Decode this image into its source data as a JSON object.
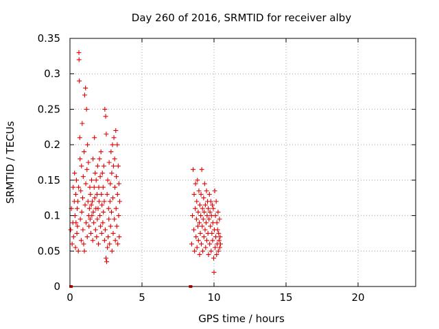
{
  "chart_data": {
    "type": "scatter",
    "title": "Day 260 of 2016, SRMTID for receiver alby",
    "xlabel": "GPS time / hours",
    "ylabel": "SRMTID / TECUs",
    "xlim": [
      0,
      24
    ],
    "ylim": [
      0,
      0.35
    ],
    "xticks": [
      0,
      5,
      10,
      15,
      20
    ],
    "xtick_labels": [
      "0",
      "5",
      "10",
      "15",
      "20"
    ],
    "yticks": [
      0,
      0.05,
      0.1,
      0.15,
      0.2,
      0.25,
      0.3,
      0.35
    ],
    "ytick_labels": [
      "0",
      "0.05",
      "0.1",
      "0.15",
      "0.2",
      "0.25",
      "0.3",
      "0.35"
    ],
    "grid": true,
    "marker": "+",
    "color": "#e00000",
    "series": [
      {
        "name": "SRMTID",
        "points": [
          [
            0.05,
            0.08
          ],
          [
            0.1,
            0.11
          ],
          [
            0.15,
            0.06
          ],
          [
            0.2,
            0.09
          ],
          [
            0.22,
            0.14
          ],
          [
            0.25,
            0.07
          ],
          [
            0.3,
            0.12
          ],
          [
            0.32,
            0.16
          ],
          [
            0.35,
            0.1
          ],
          [
            0.38,
            0.055
          ],
          [
            0.4,
            0.13
          ],
          [
            0.42,
            0.09
          ],
          [
            0.45,
            0.15
          ],
          [
            0.48,
            0.075
          ],
          [
            0.5,
            0.11
          ],
          [
            0.52,
            0.085
          ],
          [
            0.55,
            0.12
          ],
          [
            0.58,
            0.05
          ],
          [
            0.6,
            0.14
          ],
          [
            0.62,
            0.33
          ],
          [
            0.63,
            0.32
          ],
          [
            0.65,
            0.29
          ],
          [
            0.68,
            0.21
          ],
          [
            0.7,
            0.18
          ],
          [
            0.72,
            0.095
          ],
          [
            0.75,
            0.135
          ],
          [
            0.78,
            0.065
          ],
          [
            0.8,
            0.17
          ],
          [
            0.82,
            0.105
          ],
          [
            0.85,
            0.23
          ],
          [
            0.88,
            0.125
          ],
          [
            0.9,
            0.08
          ],
          [
            0.92,
            0.155
          ],
          [
            0.95,
            0.06
          ],
          [
            0.98,
            0.19
          ],
          [
            1.0,
            0.05
          ],
          [
            1.02,
            0.27
          ],
          [
            1.05,
            0.115
          ],
          [
            1.08,
            0.28
          ],
          [
            1.1,
            0.145
          ],
          [
            1.12,
            0.09
          ],
          [
            1.15,
            0.25
          ],
          [
            1.18,
            0.165
          ],
          [
            1.2,
            0.07
          ],
          [
            1.22,
            0.2
          ],
          [
            1.25,
            0.12
          ],
          [
            1.28,
            0.175
          ],
          [
            1.3,
            0.1
          ],
          [
            1.32,
            0.085
          ],
          [
            1.35,
            0.11
          ],
          [
            1.38,
            0.14
          ],
          [
            1.4,
            0.095
          ],
          [
            1.42,
            0.13
          ],
          [
            1.45,
            0.075
          ],
          [
            1.48,
            0.115
          ],
          [
            1.5,
            0.15
          ],
          [
            1.52,
            0.1
          ],
          [
            1.55,
            0.12
          ],
          [
            1.58,
            0.065
          ],
          [
            1.6,
            0.18
          ],
          [
            1.62,
            0.105
          ],
          [
            1.65,
            0.09
          ],
          [
            1.68,
            0.14
          ],
          [
            1.7,
            0.21
          ],
          [
            1.72,
            0.125
          ],
          [
            1.75,
            0.16
          ],
          [
            1.78,
            0.08
          ],
          [
            1.8,
            0.11
          ],
          [
            1.82,
            0.15
          ],
          [
            1.85,
            0.07
          ],
          [
            1.88,
            0.13
          ],
          [
            1.9,
            0.095
          ],
          [
            1.92,
            0.17
          ],
          [
            1.95,
            0.11
          ],
          [
            1.98,
            0.06
          ],
          [
            2.0,
            0.14
          ],
          [
            2.02,
            0.12
          ],
          [
            2.05,
            0.18
          ],
          [
            2.08,
            0.1
          ],
          [
            2.1,
            0.155
          ],
          [
            2.12,
            0.085
          ],
          [
            2.15,
            0.19
          ],
          [
            2.18,
            0.13
          ],
          [
            2.2,
            0.075
          ],
          [
            2.22,
            0.115
          ],
          [
            2.25,
            0.16
          ],
          [
            2.28,
            0.09
          ],
          [
            2.3,
            0.14
          ],
          [
            2.32,
            0.105
          ],
          [
            2.35,
            0.17
          ],
          [
            2.38,
            0.12
          ],
          [
            2.4,
            0.065
          ],
          [
            2.42,
            0.25
          ],
          [
            2.45,
            0.08
          ],
          [
            2.48,
            0.24
          ],
          [
            2.5,
            0.04
          ],
          [
            2.52,
            0.215
          ],
          [
            2.55,
            0.035
          ],
          [
            2.58,
            0.13
          ],
          [
            2.6,
            0.055
          ],
          [
            2.62,
            0.15
          ],
          [
            2.65,
            0.07
          ],
          [
            2.68,
            0.11
          ],
          [
            2.7,
            0.095
          ],
          [
            2.72,
            0.175
          ],
          [
            2.75,
            0.06
          ],
          [
            2.78,
            0.12
          ],
          [
            2.8,
            0.145
          ],
          [
            2.82,
            0.085
          ],
          [
            2.85,
            0.19
          ],
          [
            2.88,
            0.105
          ],
          [
            2.9,
            0.16
          ],
          [
            2.92,
            0.05
          ],
          [
            2.95,
            0.2
          ],
          [
            2.98,
            0.125
          ],
          [
            3.0,
            0.075
          ],
          [
            3.02,
            0.17
          ],
          [
            3.05,
            0.21
          ],
          [
            3.08,
            0.095
          ],
          [
            3.1,
            0.18
          ],
          [
            3.12,
            0.14
          ],
          [
            3.15,
            0.065
          ],
          [
            3.18,
            0.22
          ],
          [
            3.2,
            0.11
          ],
          [
            3.22,
            0.155
          ],
          [
            3.25,
            0.085
          ],
          [
            3.28,
            0.2
          ],
          [
            3.3,
            0.13
          ],
          [
            3.32,
            0.06
          ],
          [
            3.35,
            0.17
          ],
          [
            3.38,
            0.1
          ],
          [
            3.4,
            0.145
          ],
          [
            3.42,
            0.07
          ],
          [
            3.45,
            0.12
          ],
          [
            8.45,
            0.06
          ],
          [
            8.5,
            0.1
          ],
          [
            8.55,
            0.165
          ],
          [
            8.6,
            0.08
          ],
          [
            8.62,
            0.13
          ],
          [
            8.65,
            0.05
          ],
          [
            8.7,
            0.11
          ],
          [
            8.72,
            0.145
          ],
          [
            8.75,
            0.07
          ],
          [
            8.78,
            0.095
          ],
          [
            8.8,
            0.12
          ],
          [
            8.82,
            0.055
          ],
          [
            8.85,
            0.15
          ],
          [
            8.88,
            0.085
          ],
          [
            8.9,
            0.105
          ],
          [
            8.92,
            0.065
          ],
          [
            8.95,
            0.135
          ],
          [
            8.98,
            0.09
          ],
          [
            9.0,
            0.045
          ],
          [
            9.02,
            0.115
          ],
          [
            9.05,
            0.075
          ],
          [
            9.08,
            0.1
          ],
          [
            9.1,
            0.13
          ],
          [
            9.12,
            0.06
          ],
          [
            9.15,
            0.165
          ],
          [
            9.18,
            0.085
          ],
          [
            9.2,
            0.11
          ],
          [
            9.22,
            0.05
          ],
          [
            9.25,
            0.095
          ],
          [
            9.28,
            0.125
          ],
          [
            9.3,
            0.07
          ],
          [
            9.32,
            0.105
          ],
          [
            9.35,
            0.145
          ],
          [
            9.38,
            0.08
          ],
          [
            9.4,
            0.115
          ],
          [
            9.42,
            0.055
          ],
          [
            9.45,
            0.09
          ],
          [
            9.48,
            0.135
          ],
          [
            9.5,
            0.065
          ],
          [
            9.52,
            0.1
          ],
          [
            9.55,
            0.12
          ],
          [
            9.58,
            0.075
          ],
          [
            9.6,
            0.11
          ],
          [
            9.62,
            0.045
          ],
          [
            9.65,
            0.095
          ],
          [
            9.68,
            0.13
          ],
          [
            9.7,
            0.06
          ],
          [
            9.72,
            0.105
          ],
          [
            9.75,
            0.085
          ],
          [
            9.78,
            0.12
          ],
          [
            9.8,
            0.05
          ],
          [
            9.82,
            0.1
          ],
          [
            9.85,
            0.075
          ],
          [
            9.88,
            0.115
          ],
          [
            9.9,
            0.065
          ],
          [
            9.92,
            0.09
          ],
          [
            9.95,
            0.11
          ],
          [
            9.98,
            0.04
          ],
          [
            10.0,
            0.02
          ],
          [
            10.02,
            0.08
          ],
          [
            10.05,
            0.135
          ],
          [
            10.08,
            0.055
          ],
          [
            10.1,
            0.1
          ],
          [
            10.12,
            0.07
          ],
          [
            10.15,
            0.12
          ],
          [
            10.18,
            0.045
          ],
          [
            10.2,
            0.09
          ],
          [
            10.22,
            0.06
          ],
          [
            10.25,
            0.08
          ],
          [
            10.28,
            0.105
          ],
          [
            10.3,
            0.05
          ],
          [
            10.32,
            0.075
          ],
          [
            10.35,
            0.065
          ],
          [
            10.38,
            0.095
          ],
          [
            10.4,
            0.055
          ],
          [
            10.42,
            0.07
          ],
          [
            10.45,
            0.06
          ]
        ]
      }
    ],
    "markers_at_zero": [
      0.05,
      0.1,
      8.35,
      8.4
    ]
  }
}
